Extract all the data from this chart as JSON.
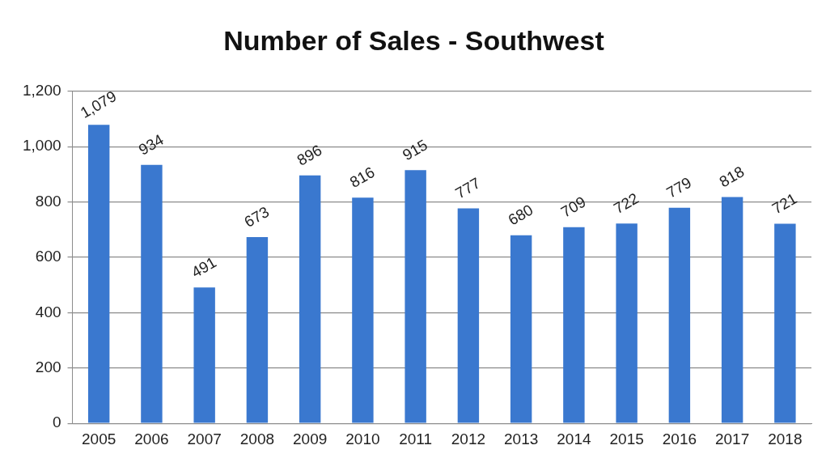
{
  "chart_data": {
    "type": "bar",
    "title": "Number of Sales - Southwest",
    "categories": [
      "2005",
      "2006",
      "2007",
      "2008",
      "2009",
      "2010",
      "2011",
      "2012",
      "2013",
      "2014",
      "2015",
      "2016",
      "2017",
      "2018"
    ],
    "values": [
      1079,
      934,
      491,
      673,
      896,
      816,
      915,
      777,
      680,
      709,
      722,
      779,
      818,
      721
    ],
    "value_labels": [
      "1,079",
      "934",
      "491",
      "673",
      "896",
      "816",
      "915",
      "777",
      "680",
      "709",
      "722",
      "779",
      "818",
      "721"
    ],
    "color": "#3a78cf",
    "ylim": [
      0,
      1200
    ],
    "yticks": [
      0,
      200,
      400,
      600,
      800,
      {
        "value": 1000,
        "label": "1,000"
      },
      {
        "value": 1200,
        "label": "1,200"
      }
    ],
    "grid": "y",
    "legend": false
  }
}
